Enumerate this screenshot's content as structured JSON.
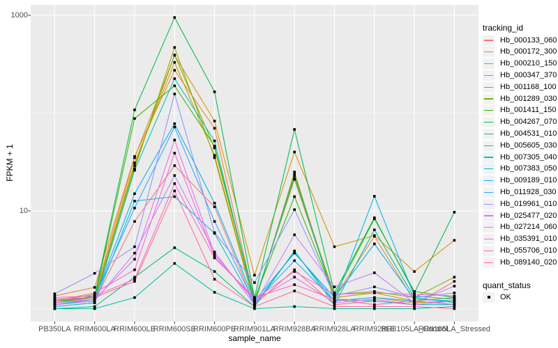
{
  "chart_data": {
    "type": "line",
    "title": "",
    "xlabel": "sample_name",
    "ylabel": "FPKM + 1",
    "x_categories": [
      "PB350LA",
      "RRIM600LA",
      "RRIM600LE",
      "RRIM600SE",
      "RRIM600PE",
      "RRIM901LA",
      "RRIM928BA",
      "RRIM928LA",
      "RRIM928LE",
      "RRII105LA_Control",
      "RRII105LA_Stressed"
    ],
    "y_scale": "log10",
    "y_axis": {
      "major_ticks": [
        {
          "label": "1000",
          "value": 1000
        },
        {
          "label": "10",
          "value": 10
        }
      ],
      "minor_gridlines": [
        100,
        1
      ],
      "visible_range": [
        0.74,
        1280
      ]
    },
    "legend_title": "tracking_id",
    "quant_legend": {
      "title": "quant_status",
      "items": [
        "OK"
      ]
    },
    "point_shape": "filled-square",
    "point_color": "#000000",
    "panel_bg": "#EBEBEB",
    "grid_color": "#FFFFFF",
    "axis_text_color": "#4D4D4D",
    "legend_key_bg": "#F2F2F2",
    "series": [
      {
        "name": "Hb_000133_060",
        "color": "#F8766D",
        "values": [
          1.1,
          1.2,
          7.8,
          29,
          11,
          1.1,
          2.5,
          1.1,
          1.2,
          1.1,
          1.9
        ]
      },
      {
        "name": "Hb_000172_300",
        "color": "#EA8331",
        "values": [
          1.35,
          1.65,
          36,
          274,
          70,
          1.2,
          21,
          1.3,
          5.5,
          1.2,
          1.1
        ]
      },
      {
        "name": "Hb_000210_150",
        "color": "#D89000",
        "values": [
          1.2,
          1.4,
          35,
          390,
          83,
          2.2,
          40,
          4.3,
          5.6,
          2.4,
          5.0
        ]
      },
      {
        "name": "Hb_000347_370",
        "color": "#C09B00",
        "values": [
          1.15,
          1.3,
          31,
          330,
          37,
          1.15,
          24,
          1.3,
          1.45,
          1.2,
          1.3
        ]
      },
      {
        "name": "Hb_001168_100",
        "color": "#A3A500",
        "values": [
          1.05,
          1.15,
          27,
          470,
          35,
          1.1,
          25,
          1.2,
          1.3,
          1.15,
          1.2
        ]
      },
      {
        "name": "Hb_001289_030",
        "color": "#7CAE00",
        "values": [
          1.1,
          1.25,
          29,
          393,
          44,
          1.2,
          21.5,
          1.4,
          1.5,
          1.3,
          2.1
        ]
      },
      {
        "name": "Hb_001411_150",
        "color": "#39B600",
        "values": [
          1.2,
          1.3,
          88,
          190,
          46,
          1.25,
          14,
          1.35,
          8.3,
          1.5,
          1.3
        ]
      },
      {
        "name": "Hb_004267_070",
        "color": "#00BB4E",
        "values": [
          1.15,
          1.35,
          108,
          950,
          165,
          1.3,
          68,
          1.45,
          8.5,
          1.45,
          9.7
        ]
      },
      {
        "name": "Hb_004531_010",
        "color": "#00BF7D",
        "values": [
          1.0,
          1.05,
          2.1,
          4.2,
          2.4,
          1.05,
          3.9,
          1.1,
          6.4,
          1.3,
          1.15
        ]
      },
      {
        "name": "Hb_005605_030",
        "color": "#00C1A3",
        "values": [
          1.0,
          1.0,
          1.3,
          2.9,
          1.47,
          1.0,
          1.05,
          1.0,
          1.0,
          1.0,
          1.05
        ]
      },
      {
        "name": "Hb_007305_040",
        "color": "#00BFC4",
        "values": [
          1.1,
          1.2,
          26,
          225,
          52,
          1.15,
          23,
          1.25,
          1.2,
          1.1,
          1.1
        ]
      },
      {
        "name": "Hb_007383_050",
        "color": "#00BAE0",
        "values": [
          1.05,
          1.15,
          12.6,
          14,
          5.9,
          1.1,
          3.8,
          1.2,
          14.1,
          1.35,
          1.25
        ]
      },
      {
        "name": "Hb_009189_010",
        "color": "#00B0F6",
        "values": [
          1.1,
          1.25,
          15,
          78,
          12,
          1.2,
          3.7,
          1.3,
          4.6,
          1.25,
          1.2
        ]
      },
      {
        "name": "Hb_011928_030",
        "color": "#35A2FF",
        "values": [
          1.25,
          1.3,
          10.7,
          72,
          7.8,
          1.15,
          3.1,
          1.2,
          1.3,
          1.2,
          1.1
        ]
      },
      {
        "name": "Hb_019961_010",
        "color": "#9590FF",
        "values": [
          1.42,
          2.3,
          4.3,
          157,
          6.0,
          1.85,
          10.3,
          1.35,
          1.67,
          1.3,
          1.45
        ]
      },
      {
        "name": "Hb_025477_020",
        "color": "#C77CFF",
        "values": [
          1.1,
          1.2,
          3.7,
          23,
          3.8,
          1.1,
          5.7,
          1.67,
          2.33,
          1.15,
          1.7
        ]
      },
      {
        "name": "Hb_027214_060",
        "color": "#E76BF3",
        "values": [
          1.15,
          1.25,
          3.2,
          53,
          3.6,
          1.2,
          2.1,
          1.15,
          1.25,
          1.1,
          1.2
        ]
      },
      {
        "name": "Hb_035391_010",
        "color": "#FA62DB",
        "values": [
          1.2,
          1.45,
          2.5,
          39,
          3.4,
          1.25,
          2.4,
          1.4,
          1.45,
          1.4,
          1.35
        ]
      },
      {
        "name": "Hb_055706_010",
        "color": "#FF62BC",
        "values": [
          1.3,
          1.35,
          2.0,
          19,
          3.3,
          1.3,
          1.76,
          1.25,
          1.1,
          1.2,
          1.1
        ]
      },
      {
        "name": "Hb_089140_020",
        "color": "#FF6A98",
        "values": [
          1.25,
          1.3,
          1.9,
          16,
          2.0,
          1.05,
          1.52,
          1.05,
          1.05,
          1.05,
          1.0
        ]
      }
    ]
  }
}
